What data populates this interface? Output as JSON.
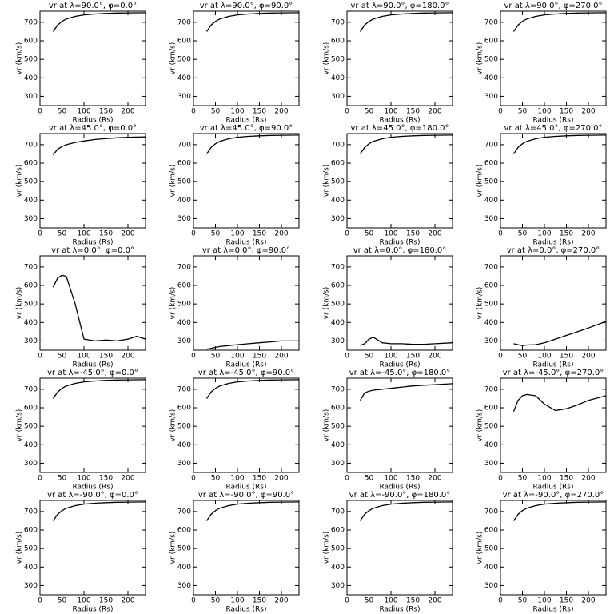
{
  "chart_data": [
    {
      "type": "line",
      "title": "vr at λ=90.0°, φ=0.0°",
      "xlabel": "Radius (Rs)",
      "ylabel": "vr (km/s)",
      "x": [
        30,
        40,
        50,
        60,
        80,
        100,
        125,
        150,
        175,
        200,
        240
      ],
      "values": [
        650,
        685,
        705,
        718,
        732,
        740,
        745,
        748,
        750,
        751,
        752
      ],
      "xlim": [
        0,
        240
      ],
      "ylim": [
        250,
        760
      ],
      "xticks": [
        0,
        50,
        100,
        150,
        200
      ],
      "yticks": [
        300,
        400,
        500,
        600,
        700
      ],
      "color": "#000000"
    },
    {
      "type": "line",
      "title": "vr at λ=90.0°, φ=90.0°",
      "xlabel": "Radius (Rs)",
      "ylabel": "vr (km/s)",
      "x": [
        30,
        40,
        50,
        60,
        80,
        100,
        125,
        150,
        175,
        200,
        240
      ],
      "values": [
        650,
        685,
        705,
        718,
        732,
        740,
        745,
        748,
        750,
        751,
        752
      ],
      "xlim": [
        0,
        240
      ],
      "ylim": [
        250,
        760
      ],
      "xticks": [
        0,
        50,
        100,
        150,
        200
      ],
      "yticks": [
        300,
        400,
        500,
        600,
        700
      ],
      "color": "#000000"
    },
    {
      "type": "line",
      "title": "vr at λ=90.0°, φ=180.0°",
      "xlabel": "Radius (Rs)",
      "ylabel": "vr (km/s)",
      "x": [
        30,
        40,
        50,
        60,
        80,
        100,
        125,
        150,
        175,
        200,
        240
      ],
      "values": [
        650,
        685,
        705,
        718,
        732,
        740,
        745,
        748,
        750,
        751,
        752
      ],
      "xlim": [
        0,
        240
      ],
      "ylim": [
        250,
        760
      ],
      "xticks": [
        0,
        50,
        100,
        150,
        200
      ],
      "yticks": [
        300,
        400,
        500,
        600,
        700
      ],
      "color": "#000000"
    },
    {
      "type": "line",
      "title": "vr at λ=90.0°, φ=270.0°",
      "xlabel": "Radius (Rs)",
      "ylabel": "vr (km/s)",
      "x": [
        30,
        40,
        50,
        60,
        80,
        100,
        125,
        150,
        175,
        200,
        240
      ],
      "values": [
        650,
        685,
        705,
        718,
        732,
        740,
        745,
        748,
        750,
        751,
        752
      ],
      "xlim": [
        0,
        240
      ],
      "ylim": [
        250,
        760
      ],
      "xticks": [
        0,
        50,
        100,
        150,
        200
      ],
      "yticks": [
        300,
        400,
        500,
        600,
        700
      ],
      "color": "#000000"
    },
    {
      "type": "line",
      "title": "vr at λ=45.0°, φ=0.0°",
      "xlabel": "Radius (Rs)",
      "ylabel": "vr (km/s)",
      "x": [
        30,
        40,
        50,
        60,
        80,
        100,
        125,
        150,
        175,
        200,
        240
      ],
      "values": [
        645,
        675,
        690,
        700,
        712,
        720,
        728,
        733,
        737,
        740,
        742
      ],
      "xlim": [
        0,
        240
      ],
      "ylim": [
        250,
        760
      ],
      "xticks": [
        0,
        50,
        100,
        150,
        200
      ],
      "yticks": [
        300,
        400,
        500,
        600,
        700
      ],
      "color": "#000000"
    },
    {
      "type": "line",
      "title": "vr at λ=45.0°, φ=90.0°",
      "xlabel": "Radius (Rs)",
      "ylabel": "vr (km/s)",
      "x": [
        30,
        40,
        50,
        60,
        80,
        100,
        125,
        150,
        175,
        200,
        240
      ],
      "values": [
        650,
        685,
        705,
        718,
        732,
        740,
        745,
        748,
        750,
        751,
        752
      ],
      "xlim": [
        0,
        240
      ],
      "ylim": [
        250,
        760
      ],
      "xticks": [
        0,
        50,
        100,
        150,
        200
      ],
      "yticks": [
        300,
        400,
        500,
        600,
        700
      ],
      "color": "#000000"
    },
    {
      "type": "line",
      "title": "vr at λ=45.0°, φ=180.0°",
      "xlabel": "Radius (Rs)",
      "ylabel": "vr (km/s)",
      "x": [
        30,
        40,
        50,
        60,
        80,
        100,
        125,
        150,
        175,
        200,
        240
      ],
      "values": [
        650,
        685,
        705,
        718,
        732,
        740,
        745,
        748,
        750,
        751,
        752
      ],
      "xlim": [
        0,
        240
      ],
      "ylim": [
        250,
        760
      ],
      "xticks": [
        0,
        50,
        100,
        150,
        200
      ],
      "yticks": [
        300,
        400,
        500,
        600,
        700
      ],
      "color": "#000000"
    },
    {
      "type": "line",
      "title": "vr at λ=45.0°, φ=270.0°",
      "xlabel": "Radius (Rs)",
      "ylabel": "vr (km/s)",
      "x": [
        30,
        40,
        50,
        60,
        80,
        100,
        125,
        150,
        175,
        200,
        240
      ],
      "values": [
        650,
        685,
        705,
        718,
        732,
        740,
        745,
        748,
        750,
        751,
        752
      ],
      "xlim": [
        0,
        240
      ],
      "ylim": [
        250,
        760
      ],
      "xticks": [
        0,
        50,
        100,
        150,
        200
      ],
      "yticks": [
        300,
        400,
        500,
        600,
        700
      ],
      "color": "#000000"
    },
    {
      "type": "line",
      "title": "vr at λ=0.0°, φ=0.0°",
      "xlabel": "Radius (Rs)",
      "ylabel": "vr (km/s)",
      "x": [
        30,
        40,
        50,
        60,
        80,
        100,
        125,
        150,
        175,
        200,
        220,
        240
      ],
      "values": [
        590,
        640,
        655,
        648,
        500,
        310,
        300,
        305,
        300,
        310,
        325,
        310
      ],
      "xlim": [
        0,
        240
      ],
      "ylim": [
        250,
        760
      ],
      "xticks": [
        0,
        50,
        100,
        150,
        200
      ],
      "yticks": [
        300,
        400,
        500,
        600,
        700
      ],
      "color": "#000000"
    },
    {
      "type": "line",
      "title": "vr at λ=0.0°, φ=90.0°",
      "xlabel": "Radius (Rs)",
      "ylabel": "vr (km/s)",
      "x": [
        30,
        40,
        50,
        60,
        80,
        100,
        125,
        150,
        175,
        200,
        240
      ],
      "values": [
        255,
        260,
        265,
        270,
        275,
        280,
        285,
        290,
        295,
        300,
        300
      ],
      "xlim": [
        0,
        240
      ],
      "ylim": [
        250,
        760
      ],
      "xticks": [
        0,
        50,
        100,
        150,
        200
      ],
      "yticks": [
        300,
        400,
        500,
        600,
        700
      ],
      "color": "#000000"
    },
    {
      "type": "line",
      "title": "vr at λ=0.0°, φ=180.0°",
      "xlabel": "Radius (Rs)",
      "ylabel": "vr (km/s)",
      "x": [
        30,
        40,
        50,
        60,
        80,
        100,
        125,
        150,
        175,
        200,
        240
      ],
      "values": [
        275,
        285,
        310,
        320,
        290,
        285,
        285,
        282,
        282,
        285,
        290
      ],
      "xlim": [
        0,
        240
      ],
      "ylim": [
        250,
        760
      ],
      "xticks": [
        0,
        50,
        100,
        150,
        200
      ],
      "yticks": [
        300,
        400,
        500,
        600,
        700
      ],
      "color": "#000000"
    },
    {
      "type": "line",
      "title": "vr at λ=0.0°, φ=270.0°",
      "xlabel": "Radius (Rs)",
      "ylabel": "vr (km/s)",
      "x": [
        30,
        40,
        50,
        60,
        80,
        100,
        125,
        150,
        175,
        200,
        240
      ],
      "values": [
        285,
        280,
        275,
        278,
        280,
        290,
        310,
        330,
        350,
        370,
        405
      ],
      "xlim": [
        0,
        240
      ],
      "ylim": [
        250,
        760
      ],
      "xticks": [
        0,
        50,
        100,
        150,
        200
      ],
      "yticks": [
        300,
        400,
        500,
        600,
        700
      ],
      "color": "#000000"
    },
    {
      "type": "line",
      "title": "vr at λ=-45.0°, φ=0.0°",
      "xlabel": "Radius (Rs)",
      "ylabel": "vr (km/s)",
      "x": [
        30,
        40,
        50,
        60,
        80,
        100,
        125,
        150,
        175,
        200,
        240
      ],
      "values": [
        650,
        685,
        705,
        718,
        732,
        740,
        745,
        748,
        750,
        751,
        752
      ],
      "xlim": [
        0,
        240
      ],
      "ylim": [
        250,
        760
      ],
      "xticks": [
        0,
        50,
        100,
        150,
        200
      ],
      "yticks": [
        300,
        400,
        500,
        600,
        700
      ],
      "color": "#000000"
    },
    {
      "type": "line",
      "title": "vr at λ=-45.0°, φ=90.0°",
      "xlabel": "Radius (Rs)",
      "ylabel": "vr (km/s)",
      "x": [
        30,
        40,
        50,
        60,
        80,
        100,
        125,
        150,
        175,
        200,
        240
      ],
      "values": [
        650,
        685,
        705,
        718,
        732,
        740,
        745,
        748,
        750,
        751,
        752
      ],
      "xlim": [
        0,
        240
      ],
      "ylim": [
        250,
        760
      ],
      "xticks": [
        0,
        50,
        100,
        150,
        200
      ],
      "yticks": [
        300,
        400,
        500,
        600,
        700
      ],
      "color": "#000000"
    },
    {
      "type": "line",
      "title": "vr at λ=-45.0°, φ=180.0°",
      "xlabel": "Radius (Rs)",
      "ylabel": "vr (km/s)",
      "x": [
        30,
        40,
        50,
        60,
        80,
        100,
        125,
        150,
        175,
        200,
        240
      ],
      "values": [
        640,
        680,
        690,
        695,
        700,
        705,
        712,
        718,
        722,
        725,
        730
      ],
      "xlim": [
        0,
        240
      ],
      "ylim": [
        250,
        760
      ],
      "xticks": [
        0,
        50,
        100,
        150,
        200
      ],
      "yticks": [
        300,
        400,
        500,
        600,
        700
      ],
      "color": "#000000"
    },
    {
      "type": "line",
      "title": "vr at λ=-45.0°, φ=270.0°",
      "xlabel": "Radius (Rs)",
      "ylabel": "vr (km/s)",
      "x": [
        30,
        40,
        50,
        60,
        80,
        100,
        125,
        150,
        175,
        200,
        240
      ],
      "values": [
        580,
        640,
        665,
        672,
        665,
        620,
        585,
        595,
        615,
        640,
        665
      ],
      "xlim": [
        0,
        240
      ],
      "ylim": [
        250,
        760
      ],
      "xticks": [
        0,
        50,
        100,
        150,
        200
      ],
      "yticks": [
        300,
        400,
        500,
        600,
        700
      ],
      "color": "#000000"
    },
    {
      "type": "line",
      "title": "vr at λ=-90.0°, φ=0.0°",
      "xlabel": "Radius (Rs)",
      "ylabel": "vr (km/s)",
      "x": [
        30,
        40,
        50,
        60,
        80,
        100,
        125,
        150,
        175,
        200,
        240
      ],
      "values": [
        650,
        685,
        705,
        718,
        732,
        740,
        745,
        748,
        750,
        751,
        752
      ],
      "xlim": [
        0,
        240
      ],
      "ylim": [
        250,
        760
      ],
      "xticks": [
        0,
        50,
        100,
        150,
        200
      ],
      "yticks": [
        300,
        400,
        500,
        600,
        700
      ],
      "color": "#000000"
    },
    {
      "type": "line",
      "title": "vr at λ=-90.0°, φ=90.0°",
      "xlabel": "Radius (Rs)",
      "ylabel": "vr (km/s)",
      "x": [
        30,
        40,
        50,
        60,
        80,
        100,
        125,
        150,
        175,
        200,
        240
      ],
      "values": [
        650,
        685,
        705,
        718,
        732,
        740,
        745,
        748,
        750,
        751,
        752
      ],
      "xlim": [
        0,
        240
      ],
      "ylim": [
        250,
        760
      ],
      "xticks": [
        0,
        50,
        100,
        150,
        200
      ],
      "yticks": [
        300,
        400,
        500,
        600,
        700
      ],
      "color": "#000000"
    },
    {
      "type": "line",
      "title": "vr at λ=-90.0°, φ=180.0°",
      "xlabel": "Radius (Rs)",
      "ylabel": "vr (km/s)",
      "x": [
        30,
        40,
        50,
        60,
        80,
        100,
        125,
        150,
        175,
        200,
        240
      ],
      "values": [
        650,
        685,
        705,
        718,
        732,
        740,
        745,
        748,
        750,
        751,
        752
      ],
      "xlim": [
        0,
        240
      ],
      "ylim": [
        250,
        760
      ],
      "xticks": [
        0,
        50,
        100,
        150,
        200
      ],
      "yticks": [
        300,
        400,
        500,
        600,
        700
      ],
      "color": "#000000"
    },
    {
      "type": "line",
      "title": "vr at λ=-90.0°, φ=270.0°",
      "xlabel": "Radius (Rs)",
      "ylabel": "vr (km/s)",
      "x": [
        30,
        40,
        50,
        60,
        80,
        100,
        125,
        150,
        175,
        200,
        240
      ],
      "values": [
        650,
        685,
        705,
        718,
        732,
        740,
        745,
        748,
        750,
        751,
        752
      ],
      "xlim": [
        0,
        240
      ],
      "ylim": [
        250,
        760
      ],
      "xticks": [
        0,
        50,
        100,
        150,
        200
      ],
      "yticks": [
        300,
        400,
        500,
        600,
        700
      ],
      "color": "#000000"
    }
  ]
}
